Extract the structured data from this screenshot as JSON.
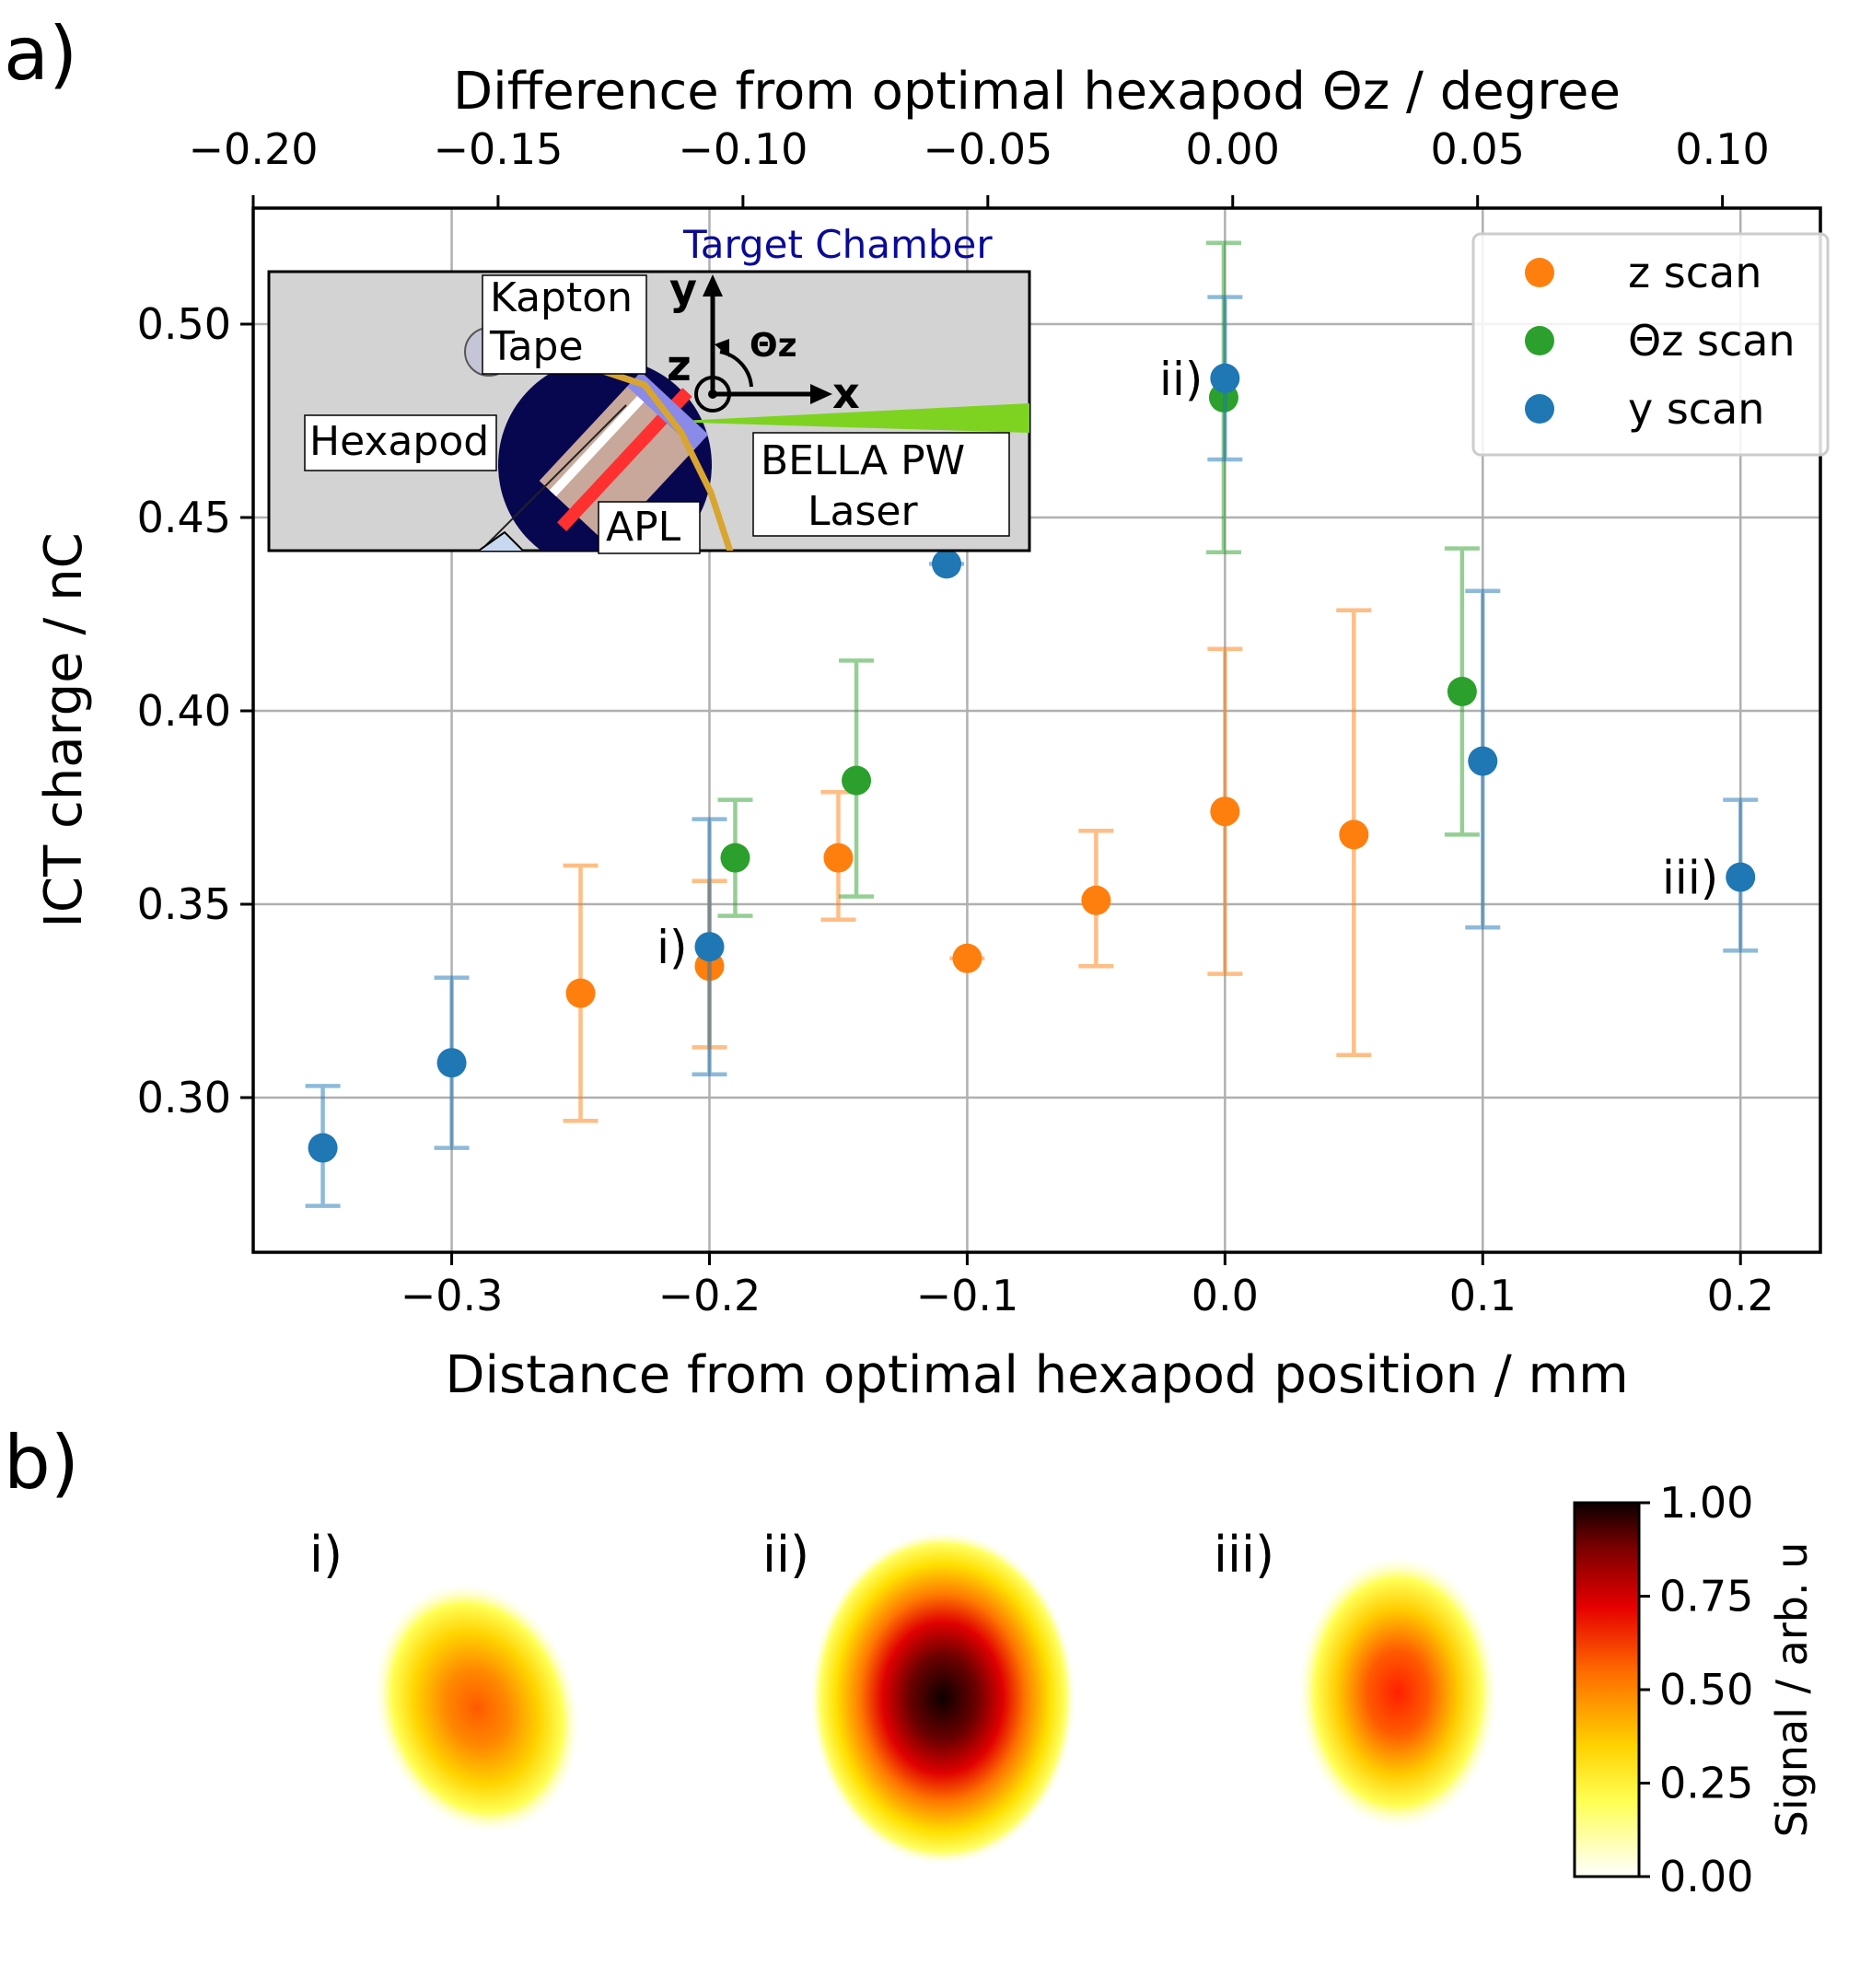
{
  "panel_labels": {
    "a": "a)",
    "b": "b)"
  },
  "chart_data": {
    "type": "scatter",
    "top_xlabel": "Difference from optimal hexapod Θz / degree",
    "xlabel": "Distance from optimal hexapod position / mm",
    "ylabel": "ICT charge / nC",
    "xlim": [
      -0.377,
      0.231
    ],
    "ylim": [
      0.26,
      0.53
    ],
    "top_xlim": [
      -0.2,
      0.12
    ],
    "x_ticks": [
      -0.3,
      -0.2,
      -0.1,
      0.0,
      0.1,
      0.2
    ],
    "x_tick_labels": [
      "−0.3",
      "−0.2",
      "−0.1",
      "0.0",
      "0.1",
      "0.2"
    ],
    "y_ticks": [
      0.3,
      0.35,
      0.4,
      0.45,
      0.5
    ],
    "y_tick_labels": [
      "0.30",
      "0.35",
      "0.40",
      "0.45",
      "0.50"
    ],
    "top_ticks": [
      -0.2,
      -0.15,
      -0.1,
      -0.05,
      0.0,
      0.05,
      0.1
    ],
    "top_tick_labels": [
      "−0.20",
      "−0.15",
      "−0.10",
      "−0.05",
      "0.00",
      "0.05",
      "0.10"
    ],
    "grid": true,
    "legend_position": "top-right",
    "series": [
      {
        "name": "z scan",
        "color": "#ff7f0e",
        "marker": "circle",
        "x": [
          -0.25,
          -0.2,
          -0.15,
          -0.1,
          -0.05,
          0.0,
          0.05
        ],
        "y": [
          0.327,
          0.334,
          0.362,
          0.336,
          0.351,
          0.374,
          0.368
        ],
        "yerr_low": [
          0.294,
          0.313,
          0.346,
          0.336,
          0.334,
          0.332,
          0.311
        ],
        "yerr_high": [
          0.36,
          0.356,
          0.379,
          0.336,
          0.369,
          0.416,
          0.426
        ]
      },
      {
        "name": "Θz scan",
        "color": "#2ca02c",
        "marker": "circle",
        "x": [
          -0.19,
          -0.143,
          -0.0005,
          0.092
        ],
        "y": [
          0.362,
          0.382,
          0.481,
          0.405
        ],
        "yerr_low": [
          0.347,
          0.352,
          0.441,
          0.368
        ],
        "yerr_high": [
          0.377,
          0.413,
          0.521,
          0.442
        ]
      },
      {
        "name": "y scan",
        "color": "#1f77b4",
        "marker": "circle",
        "x": [
          -0.35,
          -0.3,
          -0.2,
          -0.108,
          0.0,
          0.1,
          0.2
        ],
        "y": [
          0.287,
          0.309,
          0.339,
          0.438,
          0.486,
          0.387,
          0.357
        ],
        "yerr_low": [
          0.272,
          0.287,
          0.306,
          0.438,
          0.465,
          0.344,
          0.338
        ],
        "yerr_high": [
          0.303,
          0.331,
          0.372,
          0.438,
          0.507,
          0.431,
          0.377
        ]
      }
    ],
    "annotations": [
      {
        "text": "i)",
        "x": -0.2,
        "y": 0.339
      },
      {
        "text": "ii)",
        "x": 0.0,
        "y": 0.486
      },
      {
        "text": "iii)",
        "x": 0.2,
        "y": 0.357
      }
    ],
    "inset": {
      "title": "Target Chamber",
      "labels": [
        "Kapton",
        "Tape",
        "Hexapod",
        "APL",
        "BELLA PW",
        "Laser"
      ],
      "axis_labels": {
        "y": "y",
        "z": "z",
        "x": "x",
        "theta": "Θz"
      }
    }
  },
  "images": {
    "labels": [
      "i)",
      "ii)",
      "iii)"
    ],
    "peaks": [
      0.58,
      1.0,
      0.64
    ]
  },
  "colorbar": {
    "label": "Signal / arb. u",
    "range": [
      0,
      1
    ],
    "ticks": [
      0.0,
      0.25,
      0.5,
      0.75,
      1.0
    ],
    "tick_labels": [
      "0.00",
      "0.25",
      "0.50",
      "0.75",
      "1.00"
    ],
    "colormap": "hot_r"
  }
}
